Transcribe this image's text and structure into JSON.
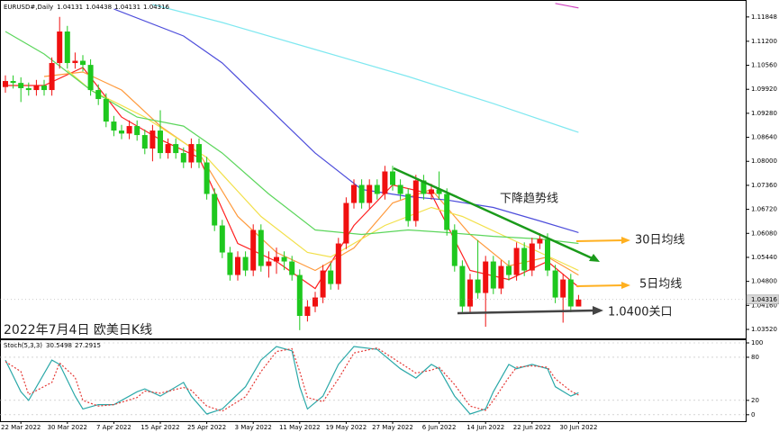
{
  "chart_data": [
    {
      "type": "candlestick",
      "title": "EURUSD#,Daily",
      "categories": [
        null,
        null,
        "22 Mar 2022",
        null,
        null,
        null,
        null,
        null,
        "30 Mar 2022",
        null,
        null,
        null,
        null,
        null,
        "7 Apr 2022",
        null,
        null,
        null,
        null,
        null,
        "15 Apr 2022",
        null,
        null,
        null,
        null,
        null,
        "25 Apr 2022",
        null,
        null,
        null,
        null,
        null,
        "3 May 2022",
        null,
        null,
        null,
        null,
        null,
        "11 May 2022",
        null,
        null,
        null,
        null,
        null,
        "19 May 2022",
        null,
        null,
        null,
        null,
        null,
        "27 May 2022",
        null,
        null,
        null,
        null,
        null,
        "6 Jun 2022",
        null,
        null,
        null,
        null,
        null,
        "14 Jun 2022",
        null,
        null,
        null,
        null,
        null,
        "22 Jun 2022",
        null,
        null,
        null,
        null,
        null,
        "30 Jun 2022"
      ],
      "open": [
        1.0998,
        1.1014,
        1.1009,
        1.0995,
        1.099,
        1.1002,
        1.099,
        1.1062,
        1.1146,
        1.1062,
        1.1068,
        1.1057,
        1.099,
        1.0966,
        1.0906,
        1.0882,
        1.0874,
        1.0894,
        1.087,
        1.0834,
        1.0882,
        1.0822,
        1.0846,
        1.0822,
        1.0797,
        1.0846,
        1.0797,
        1.0713,
        1.0629,
        1.0557,
        1.0497,
        1.0545,
        1.0509,
        1.0617,
        1.0521,
        1.0533,
        1.0545,
        1.0533,
        1.0497,
        1.0388,
        1.0413,
        1.0437,
        1.0509,
        1.0473,
        1.0581,
        1.0689,
        1.0737,
        1.0689,
        1.0737,
        1.0713,
        1.0773,
        1.0737,
        1.0713,
        1.0641,
        1.0749,
        1.0713,
        1.0725,
        1.0713,
        1.0617,
        1.0521,
        1.0413,
        1.0485,
        1.0449,
        1.0533,
        1.0461,
        1.0521,
        1.0497,
        1.0569,
        1.0509,
        1.0581,
        1.0593,
        1.0509,
        1.0437,
        1.0485,
        1.04131
      ],
      "high": [
        1.1029,
        1.1029,
        1.1024,
        1.101,
        1.1017,
        1.1017,
        1.1077,
        1.1185,
        1.1161,
        1.109,
        1.1083,
        1.1072,
        1.1005,
        1.0981,
        1.0921,
        1.0897,
        1.0909,
        1.0909,
        1.0885,
        1.0897,
        1.0936,
        1.0861,
        1.0861,
        1.0837,
        1.0861,
        1.0861,
        1.0812,
        1.0728,
        1.0644,
        1.0572,
        1.056,
        1.056,
        1.0632,
        1.0632,
        1.056,
        1.057,
        1.056,
        1.0548,
        1.0512,
        1.043,
        1.0452,
        1.0524,
        1.053,
        1.0596,
        1.0704,
        1.0752,
        1.0752,
        1.0752,
        1.0752,
        1.0788,
        1.0788,
        1.0752,
        1.0728,
        1.0764,
        1.0764,
        1.074,
        1.0773,
        1.0728,
        1.0632,
        1.0536,
        1.05,
        1.059,
        1.0548,
        1.0548,
        1.0536,
        1.0536,
        1.0584,
        1.0584,
        1.0596,
        1.0608,
        1.0608,
        1.0524,
        1.05,
        1.05,
        1.04438
      ],
      "low": [
        1.0983,
        1.0994,
        1.0958,
        1.0975,
        1.0975,
        1.0975,
        1.0975,
        1.1047,
        1.1047,
        1.1047,
        1.104,
        1.0975,
        1.095,
        1.0891,
        1.0867,
        1.0859,
        1.0859,
        1.0855,
        1.0819,
        1.08,
        1.0807,
        1.0807,
        1.0807,
        1.0782,
        1.0782,
        1.0782,
        1.0698,
        1.0614,
        1.0542,
        1.0482,
        1.0482,
        1.0494,
        1.0494,
        1.0506,
        1.049,
        1.05,
        1.051,
        1.0482,
        1.035,
        1.0373,
        1.0398,
        1.0422,
        1.0458,
        1.0458,
        1.0566,
        1.0674,
        1.0674,
        1.0674,
        1.0698,
        1.0698,
        1.0722,
        1.0698,
        1.0626,
        1.0626,
        1.0698,
        1.0698,
        1.0698,
        1.0602,
        1.0506,
        1.0398,
        1.0398,
        1.0434,
        1.0359,
        1.0446,
        1.0446,
        1.0482,
        1.0482,
        1.0494,
        1.0494,
        1.0566,
        1.0494,
        1.0422,
        1.037,
        1.0398,
        1.04131
      ],
      "close": [
        1.1014,
        1.1009,
        1.0995,
        1.099,
        1.1002,
        1.099,
        1.1062,
        1.1146,
        1.1062,
        1.1068,
        1.1057,
        1.099,
        1.0966,
        1.0906,
        1.0882,
        1.0874,
        1.0894,
        1.087,
        1.0834,
        1.0882,
        1.0822,
        1.0846,
        1.0822,
        1.0797,
        1.0846,
        1.0797,
        1.0713,
        1.0629,
        1.0557,
        1.0497,
        1.0545,
        1.0509,
        1.0617,
        1.0521,
        1.0533,
        1.0545,
        1.0533,
        1.0497,
        1.0388,
        1.0413,
        1.0437,
        1.0509,
        1.0473,
        1.0581,
        1.0689,
        1.0737,
        1.0689,
        1.0737,
        1.0713,
        1.0773,
        1.0737,
        1.0713,
        1.0641,
        1.0749,
        1.0713,
        1.0725,
        1.0713,
        1.0617,
        1.0521,
        1.0413,
        1.0485,
        1.0449,
        1.0533,
        1.0461,
        1.0521,
        1.0497,
        1.0569,
        1.0509,
        1.0581,
        1.0593,
        1.0509,
        1.0437,
        1.0485,
        1.04131,
        1.04316
      ],
      "up_color": "#f01010",
      "down_color": "#1ec81e",
      "series": [
        {
          "color": "#ff2020",
          "x": [
            0,
            5,
            10,
            15,
            20,
            25,
            30,
            35,
            40,
            45,
            50,
            55,
            60,
            65,
            70,
            74
          ],
          "values": [
            1.1002,
            1.1002,
            1.105,
            1.0918,
            1.0858,
            1.081,
            1.0581,
            1.0533,
            1.0461,
            1.0629,
            1.0737,
            1.0713,
            1.0509,
            1.0485,
            1.0533,
            1.0465
          ]
        },
        {
          "color": "#ff9a3c",
          "x": [
            5,
            10,
            15,
            20,
            25,
            30,
            35,
            40,
            45,
            50,
            55,
            60,
            65,
            70,
            74
          ],
          "values": [
            1.1026,
            1.1038,
            1.099,
            1.0894,
            1.0822,
            1.0653,
            1.0557,
            1.0509,
            1.0569,
            1.0689,
            1.0725,
            1.0605,
            1.0521,
            1.0545,
            1.0497
          ]
        },
        {
          "color": "#f2e04a",
          "x": [
            8,
            11,
            18,
            26,
            33,
            39,
            42,
            45,
            49,
            55,
            59,
            64,
            69,
            74
          ],
          "values": [
            1.1043,
            1.099,
            1.0918,
            1.081,
            1.0653,
            1.0557,
            1.0545,
            1.0581,
            1.0629,
            1.0677,
            1.0653,
            1.0605,
            1.0557,
            1.0509
          ]
        },
        {
          "color": "#5cd65c",
          "x": [
            0,
            5,
            11,
            17,
            23,
            28,
            34,
            40,
            46,
            52,
            57,
            63,
            69,
            74
          ],
          "values": [
            1.1146,
            1.1086,
            1.099,
            1.0918,
            1.0894,
            1.0822,
            1.0713,
            1.0617,
            1.0605,
            1.0617,
            1.061,
            1.06,
            1.0593,
            1.0581
          ]
        },
        {
          "color": "#4d4ddb",
          "x": [
            14,
            23,
            28,
            34,
            40,
            46,
            52,
            57,
            63,
            69,
            74
          ],
          "values": [
            1.1206,
            1.1134,
            1.1062,
            1.0942,
            1.0822,
            1.0725,
            1.0706,
            1.0697,
            1.0677,
            1.0641,
            1.061
          ]
        },
        {
          "color": "#7fe8f0",
          "x": [
            19,
            28,
            40,
            52,
            63,
            74
          ],
          "values": [
            1.1218,
            1.117,
            1.1098,
            1.1026,
            1.0954,
            1.0877
          ]
        },
        {
          "color": "#d040c0",
          "x": [
            71,
            74
          ],
          "values": [
            1.1221,
            1.1209
          ]
        }
      ],
      "ylim": [
        1.0328,
        1.123
      ],
      "yticks": [
        1.11848,
        {
          "value": 1.112,
          "label": "1.11200"
        },
        {
          "value": 1.1056,
          "label": "1.10560"
        },
        {
          "value": 1.0992,
          "label": "1.09920"
        },
        {
          "value": 1.0928,
          "label": "1.09280"
        },
        {
          "value": 1.0864,
          "label": "1.08640"
        },
        {
          "value": 1.08,
          "label": "1.08000"
        },
        {
          "value": 1.0736,
          "label": "1.07360"
        },
        {
          "value": 1.0672,
          "label": "1.06720"
        },
        {
          "value": 1.0608,
          "label": "1.06080"
        },
        {
          "value": 1.0544,
          "label": "1.05440"
        },
        {
          "value": 1.048,
          "label": "1.04800"
        },
        {
          "value": 1.0416,
          "label": "1.04160"
        },
        {
          "value": 1.0352,
          "label": "1.03520"
        }
      ],
      "annotations": [
        "下降趋势线",
        "30日均线",
        "5日均线",
        "1.0400关口"
      ],
      "caption": "2022年7月4日 欧美日K线"
    },
    {
      "type": "line",
      "title": "Stoch(5,3,3)",
      "series": [
        {
          "color": "#2aa8a8",
          "x": [
            0,
            2,
            3,
            6,
            7,
            9,
            10,
            12,
            14,
            17,
            18,
            20,
            23,
            24,
            26,
            28,
            31,
            33,
            35,
            37,
            38,
            39,
            41,
            43,
            45,
            48,
            49,
            51,
            53,
            55,
            56,
            58,
            60,
            62,
            63,
            65,
            66,
            68,
            70,
            71,
            73,
            74
          ],
          "values": [
            76,
            32,
            20,
            76,
            70,
            26,
            8,
            14,
            14,
            32,
            36,
            26,
            45,
            26,
            1,
            8,
            39,
            76,
            95,
            89,
            39,
            8,
            26,
            70,
            95,
            91,
            82,
            64,
            51,
            70,
            64,
            26,
            1,
            8,
            32,
            70,
            64,
            70,
            64,
            39,
            26,
            30.5498
          ]
        },
        {
          "color": "#e53935",
          "dashed": true,
          "x": [
            0,
            2,
            3,
            6,
            7,
            9,
            10,
            12,
            14,
            17,
            18,
            20,
            23,
            24,
            26,
            28,
            31,
            33,
            35,
            37,
            38,
            39,
            41,
            43,
            45,
            48,
            49,
            51,
            53,
            55,
            56,
            58,
            60,
            62,
            63,
            65,
            66,
            68,
            70,
            71,
            73,
            74
          ],
          "values": [
            74,
            60,
            28,
            45,
            72,
            52,
            20,
            12,
            14,
            24,
            33,
            30,
            38,
            34,
            12,
            5,
            25,
            60,
            88,
            92,
            60,
            24,
            18,
            50,
            86,
            93,
            86,
            72,
            58,
            62,
            66,
            42,
            12,
            6,
            20,
            52,
            66,
            68,
            66,
            50,
            33,
            27.2915
          ]
        }
      ],
      "ylim": [
        -9,
        105
      ],
      "yticks": [
        0,
        20,
        80,
        100
      ]
    }
  ]
}
